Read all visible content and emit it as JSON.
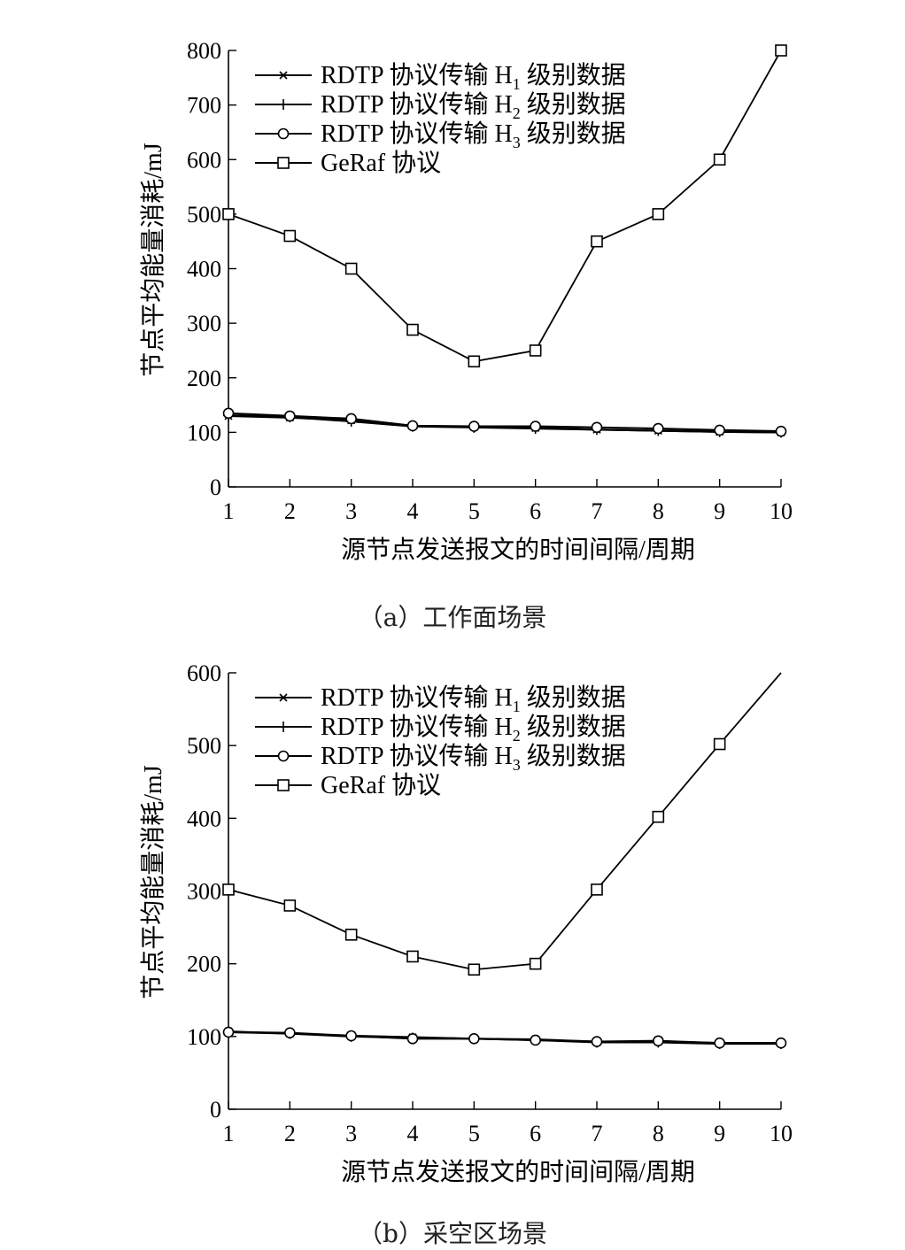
{
  "captions": [
    "（a）工作面场景",
    "（b）采空区场景"
  ],
  "chart_data": [
    {
      "type": "line",
      "xlabel": "源节点发送报文的时间间隔/周期",
      "ylabel": "节点平均能量消耗/mJ",
      "xlim": [
        1,
        10
      ],
      "ylim": [
        0,
        800
      ],
      "x": [
        1,
        2,
        3,
        4,
        5,
        6,
        7,
        8,
        9,
        10
      ],
      "x_ticks": [
        "1",
        "2",
        "3",
        "4",
        "5",
        "6",
        "7",
        "8",
        "9",
        "10"
      ],
      "y_ticks": [
        "0",
        "100",
        "200",
        "300",
        "400",
        "500",
        "600",
        "700",
        "800"
      ],
      "grid": false,
      "legend_position": "top-left",
      "series": [
        {
          "name": "RDTP 协议传输 H",
          "sub": "1",
          "suffix": " 级别数据",
          "marker": "x",
          "values": [
            130,
            127,
            122,
            112,
            110,
            108,
            105,
            103,
            101,
            100
          ]
        },
        {
          "name": "RDTP 协议传输 H",
          "sub": "2",
          "suffix": " 级别数据",
          "marker": "plus",
          "values": [
            131,
            128,
            120,
            111,
            109,
            107,
            105,
            103,
            101,
            100
          ]
        },
        {
          "name": "RDTP 协议传输 H",
          "sub": "3",
          "suffix": " 级别数据",
          "marker": "circle",
          "values": [
            135,
            130,
            125,
            112,
            111,
            111,
            109,
            107,
            104,
            102
          ]
        },
        {
          "name": "GeRaf 协议",
          "sub": "",
          "suffix": "",
          "marker": "square",
          "values": [
            500,
            460,
            400,
            288,
            230,
            250,
            450,
            500,
            600,
            800
          ]
        }
      ]
    },
    {
      "type": "line",
      "xlabel": "源节点发送报文的时间间隔/周期",
      "ylabel": "节点平均能量消耗/mJ",
      "xlim": [
        1,
        10
      ],
      "ylim": [
        0,
        600
      ],
      "x": [
        1,
        2,
        3,
        4,
        5,
        6,
        7,
        8,
        9,
        10
      ],
      "x_ticks": [
        "1",
        "2",
        "3",
        "4",
        "5",
        "6",
        "7",
        "8",
        "9",
        "10"
      ],
      "y_ticks": [
        "0",
        "100",
        "200",
        "300",
        "400",
        "500",
        "600"
      ],
      "grid": false,
      "legend_position": "top-left",
      "series": [
        {
          "name": "RDTP 协议传输 H",
          "sub": "1",
          "suffix": " 级别数据",
          "marker": "x",
          "values": [
            107,
            104,
            101,
            99,
            97,
            96,
            93,
            93,
            91,
            91
          ]
        },
        {
          "name": "RDTP 协议传输 H",
          "sub": "2",
          "suffix": " 级别数据",
          "marker": "plus",
          "values": [
            106,
            104,
            100,
            98,
            97,
            95,
            92,
            92,
            90,
            90
          ]
        },
        {
          "name": "RDTP 协议传输 H",
          "sub": "3",
          "suffix": " 级别数据",
          "marker": "circle",
          "values": [
            106,
            105,
            101,
            97,
            97,
            95,
            93,
            94,
            91,
            91
          ]
        },
        {
          "name": "GeRaf 协议",
          "sub": "",
          "suffix": "",
          "marker": "square",
          "values": [
            302,
            280,
            240,
            210,
            192,
            200,
            302,
            402,
            502,
            600
          ]
        }
      ]
    }
  ]
}
